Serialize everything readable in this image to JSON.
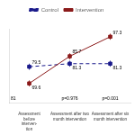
{
  "chart_data": {
    "type": "line",
    "categories": [
      "Assessment\nbefore\ninterven-\ntion",
      "Assessment after two\nmonth intervention",
      "Assessment after six\nmonth intervention"
    ],
    "series": [
      {
        "name": "Intervention",
        "color": "#8B1A1A",
        "values": [
          69.6,
          85.7,
          97.3
        ],
        "error": [
          1.8,
          1.8,
          1.8
        ],
        "marker": "square",
        "line_style": "solid"
      },
      {
        "name": "Control",
        "color": "#1A1A8B",
        "values": [
          79.5,
          81.3,
          81.3
        ],
        "error": [
          1.8,
          1.8,
          1.8
        ],
        "marker": "square",
        "line_style": "dashed"
      }
    ],
    "data_labels": true,
    "annotations": [
      "81",
      "p=0.976",
      "p=0.001"
    ],
    "ylim": [
      58,
      102
    ],
    "tick_labels": "x",
    "grid": false,
    "legend": "top"
  }
}
